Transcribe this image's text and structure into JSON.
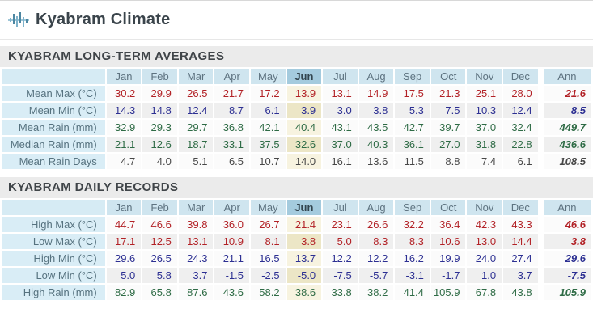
{
  "header": {
    "title": "Kyabram Climate",
    "icon": "climate-waveform-icon"
  },
  "columns": {
    "months": [
      "Jan",
      "Feb",
      "Mar",
      "Apr",
      "May",
      "Jun",
      "Jul",
      "Aug",
      "Sep",
      "Oct",
      "Nov",
      "Dec"
    ],
    "annual_label": "Ann",
    "highlighted_month": "Jun"
  },
  "colors": {
    "red": "#b22126",
    "blue": "#2c2f92",
    "green": "#2e6b45",
    "gray": "#474747",
    "icon_blue_light": "#7fb3cb",
    "icon_blue_dark": "#4d87a2",
    "header_cell_bg": "#cfe5ef",
    "header_cell_hl_bg": "#a4cbde",
    "label_cell_bg": "#d9edf6",
    "jun_cell_bg": "#f0ead0",
    "section_bg": "#ebebeb"
  },
  "tables": [
    {
      "title": "KYABRAM LONG-TERM AVERAGES",
      "rows": [
        {
          "label": "Mean Max (°C)",
          "tone": "red",
          "values": [
            "30.2",
            "29.9",
            "26.5",
            "21.7",
            "17.2",
            "13.9",
            "13.1",
            "14.9",
            "17.5",
            "21.3",
            "25.1",
            "28.0"
          ],
          "annual": "21.6"
        },
        {
          "label": "Mean Min (°C)",
          "tone": "blue",
          "values": [
            "14.3",
            "14.8",
            "12.4",
            "8.7",
            "6.1",
            "3.9",
            "3.0",
            "3.8",
            "5.3",
            "7.5",
            "10.3",
            "12.4"
          ],
          "annual": "8.5"
        },
        {
          "label": "Mean Rain (mm)",
          "tone": "green",
          "values": [
            "32.9",
            "29.3",
            "29.7",
            "36.8",
            "42.1",
            "40.4",
            "43.1",
            "43.5",
            "42.7",
            "39.7",
            "37.0",
            "32.4"
          ],
          "annual": "449.7"
        },
        {
          "label": "Median Rain (mm)",
          "tone": "green",
          "values": [
            "21.1",
            "12.6",
            "18.7",
            "33.1",
            "37.5",
            "32.6",
            "37.0",
            "40.3",
            "36.1",
            "27.0",
            "31.8",
            "22.8"
          ],
          "annual": "436.6"
        },
        {
          "label": "Mean Rain Days",
          "tone": "gray",
          "values": [
            "4.7",
            "4.0",
            "5.1",
            "6.5",
            "10.7",
            "14.0",
            "16.1",
            "13.6",
            "11.5",
            "8.8",
            "7.4",
            "6.1"
          ],
          "annual": "108.5"
        }
      ]
    },
    {
      "title": "KYABRAM DAILY RECORDS",
      "rows": [
        {
          "label": "High Max (°C)",
          "tone": "red",
          "values": [
            "44.7",
            "46.6",
            "39.8",
            "36.0",
            "26.7",
            "21.4",
            "23.1",
            "26.6",
            "32.2",
            "36.4",
            "42.3",
            "43.3"
          ],
          "annual": "46.6"
        },
        {
          "label": "Low Max (°C)",
          "tone": "red",
          "values": [
            "17.1",
            "12.5",
            "13.1",
            "10.9",
            "8.1",
            "3.8",
            "5.0",
            "8.3",
            "8.3",
            "10.6",
            "13.0",
            "14.4"
          ],
          "annual": "3.8"
        },
        {
          "label": "High Min (°C)",
          "tone": "blue",
          "values": [
            "29.6",
            "26.5",
            "24.3",
            "21.1",
            "16.5",
            "13.7",
            "12.2",
            "12.2",
            "16.2",
            "19.9",
            "24.0",
            "27.4"
          ],
          "annual": "29.6"
        },
        {
          "label": "Low Min (°C)",
          "tone": "blue",
          "values": [
            "5.0",
            "5.8",
            "3.7",
            "-1.5",
            "-2.5",
            "-5.0",
            "-7.5",
            "-5.7",
            "-3.1",
            "-1.7",
            "1.0",
            "3.7"
          ],
          "annual": "-7.5"
        },
        {
          "label": "High Rain (mm)",
          "tone": "green",
          "values": [
            "82.9",
            "65.8",
            "87.6",
            "43.6",
            "58.2",
            "38.6",
            "33.8",
            "38.2",
            "41.4",
            "105.9",
            "67.8",
            "43.8"
          ],
          "annual": "105.9"
        }
      ]
    }
  ]
}
